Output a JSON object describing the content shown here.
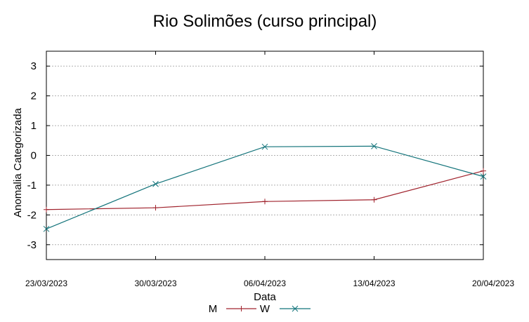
{
  "chart_data": {
    "type": "line",
    "title": "Rio Solimões (curso principal)",
    "xlabel": "Data",
    "ylabel": "Anomalia Categorizada",
    "categories": [
      "23/03/2023",
      "30/03/2023",
      "06/04/2023",
      "13/04/2023",
      "20/04/2023"
    ],
    "yticks": [
      3,
      2,
      1,
      0,
      -1,
      -2,
      -3
    ],
    "ylim": [
      -3.5,
      3.5
    ],
    "grid": true,
    "legend_position": "bottom",
    "series": [
      {
        "name": "M",
        "color": "#a0232d",
        "marker": "plus",
        "values": [
          -1.82,
          -1.76,
          -1.55,
          -1.49,
          -0.52
        ]
      },
      {
        "name": "W",
        "color": "#12737a",
        "marker": "cross",
        "values": [
          -2.47,
          -0.96,
          0.29,
          0.31,
          -0.71
        ]
      }
    ]
  }
}
